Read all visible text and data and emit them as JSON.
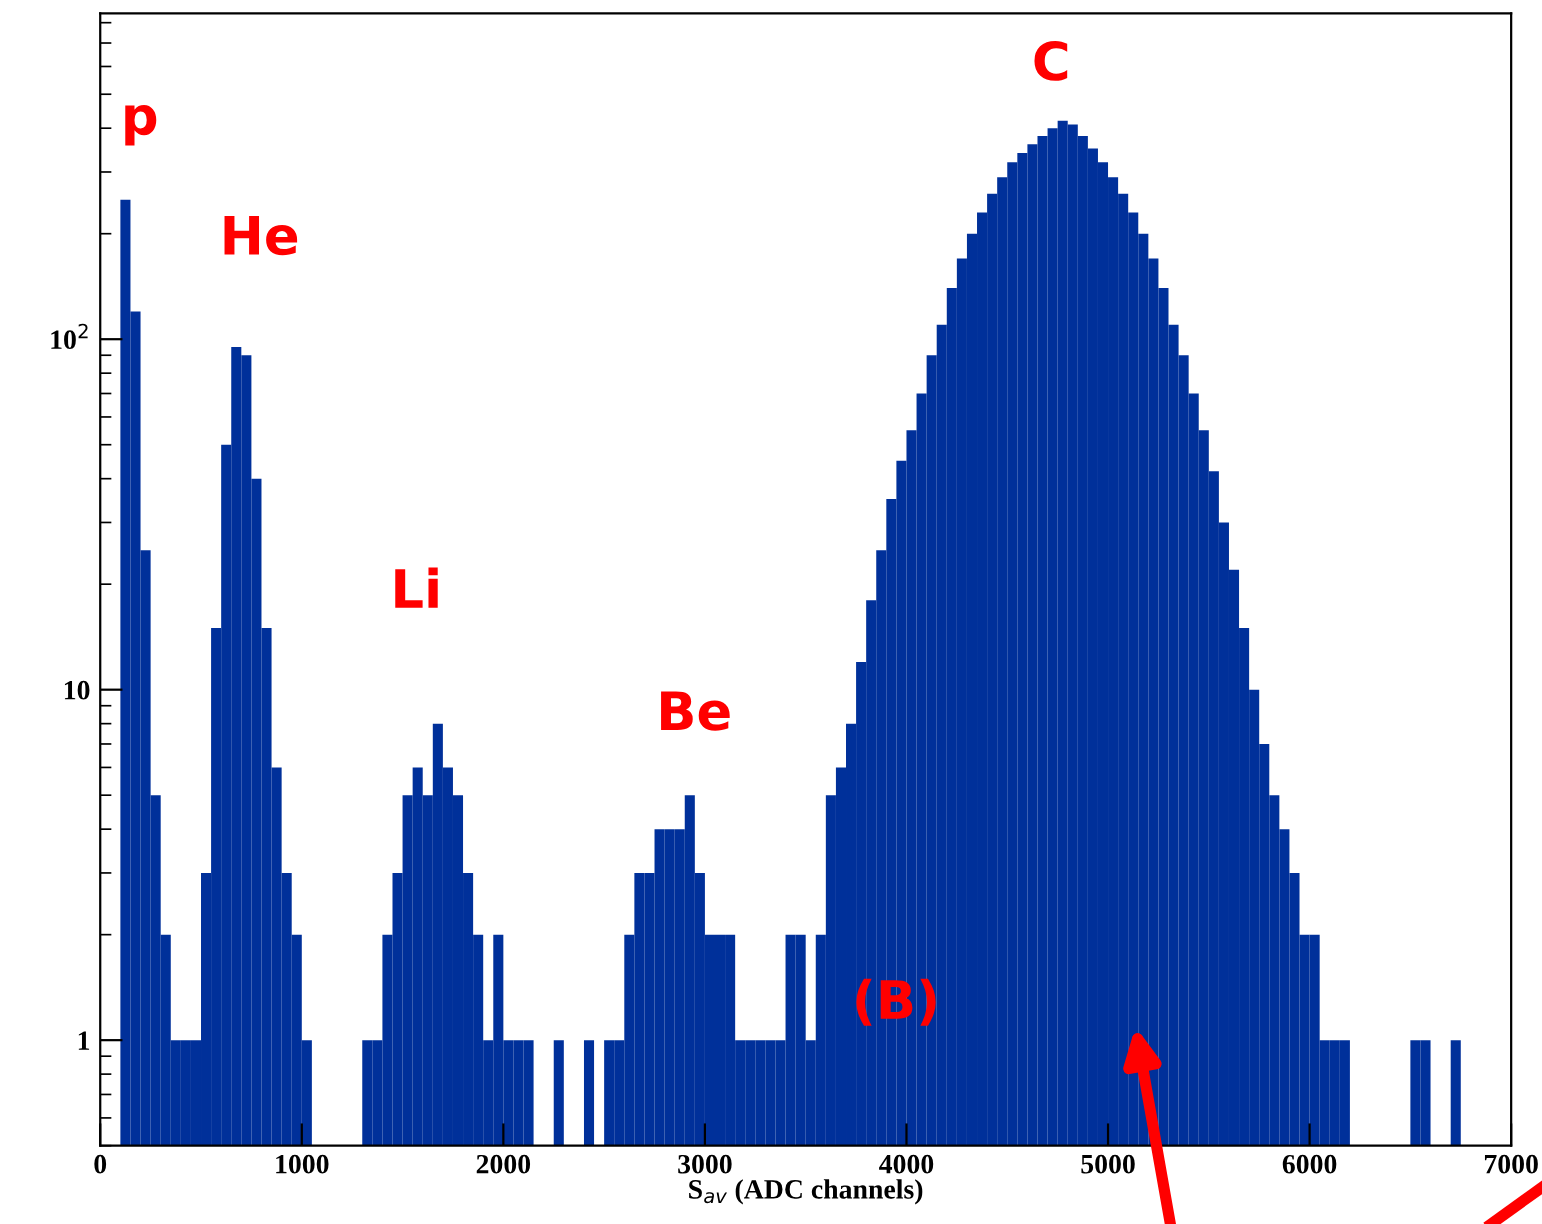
{
  "chart_data": {
    "type": "histogram",
    "xlabel": "S$_{av}$ (ADC channels)",
    "bins": [
      0,
      50,
      100,
      150,
      200,
      250,
      300,
      350,
      400,
      450,
      500,
      550,
      600,
      650,
      700,
      750,
      800,
      850,
      900,
      950,
      1000,
      1050,
      1100,
      1150,
      1200,
      1250,
      1300,
      1350,
      1400,
      1450,
      1500,
      1550,
      1600,
      1650,
      1700,
      1750,
      1800,
      1850,
      1900,
      1950,
      2000,
      2050,
      2100,
      2150,
      2200,
      2250,
      2300,
      2350,
      2400,
      2450,
      2500,
      2550,
      2600,
      2650,
      2700,
      2750,
      2800,
      2850,
      2900,
      2950,
      3000,
      3050,
      3100,
      3150,
      3200,
      3250,
      3300,
      3350,
      3400,
      3450,
      3500,
      3550,
      3600,
      3650,
      3700,
      3750,
      3800,
      3850,
      3900,
      3950,
      4000,
      4050,
      4100,
      4150,
      4200,
      4250,
      4300,
      4350,
      4400,
      4450,
      4500,
      4550,
      4600,
      4650,
      4700,
      4750,
      4800,
      4850,
      4900,
      4950,
      5000,
      5050,
      5100,
      5150,
      5200,
      5250,
      5300,
      5350,
      5400,
      5450,
      5500,
      5550,
      5600,
      5650,
      5700,
      5750,
      5800,
      5850,
      5900,
      5950,
      6000,
      6050,
      6100,
      6150,
      6200,
      6250,
      6300,
      6350,
      6400,
      6450,
      6500,
      6550,
      6600,
      6650,
      6700,
      6750,
      6800,
      6850,
      6900,
      6950,
      7000
    ],
    "values": [
      null,
      null,
      250,
      120,
      25,
      5,
      2,
      1,
      1,
      1,
      3,
      15,
      50,
      95,
      90,
      40,
      15,
      6,
      3,
      2,
      1,
      null,
      null,
      null,
      null,
      null,
      1,
      1,
      2,
      3,
      5,
      6,
      5,
      8,
      6,
      5,
      3,
      2,
      1,
      2,
      1,
      1,
      1,
      null,
      null,
      1,
      null,
      null,
      1,
      null,
      1,
      1,
      2,
      3,
      3,
      4,
      4,
      4,
      5,
      3,
      2,
      2,
      2,
      1,
      1,
      1,
      1,
      1,
      2,
      2,
      1,
      2,
      5,
      6,
      8,
      12,
      18,
      25,
      35,
      45,
      55,
      70,
      90,
      110,
      140,
      170,
      200,
      230,
      260,
      290,
      320,
      340,
      360,
      380,
      400,
      420,
      410,
      380,
      350,
      320,
      290,
      260,
      230,
      200,
      170,
      140,
      110,
      90,
      70,
      55,
      42,
      30,
      22,
      15,
      10,
      7,
      5,
      4,
      3,
      2,
      2,
      1,
      1,
      1,
      null,
      null,
      null,
      null,
      null,
      null,
      1,
      1,
      null,
      null,
      1,
      null,
      null,
      null,
      null,
      null
    ],
    "color": "#00309a",
    "log": "y",
    "xlim": [
      0,
      7000
    ],
    "ylim": [
      0.5,
      850
    ],
    "xticks": [
      0,
      1000,
      2000,
      3000,
      4000,
      5000,
      6000,
      7000
    ],
    "yticks": [
      1,
      10,
      {
        "value": 100,
        "label": "10$^{2}$"
      }
    ],
    "annotations": [
      "p",
      "He",
      "Li",
      "Be",
      "C",
      "(B)"
    ]
  }
}
